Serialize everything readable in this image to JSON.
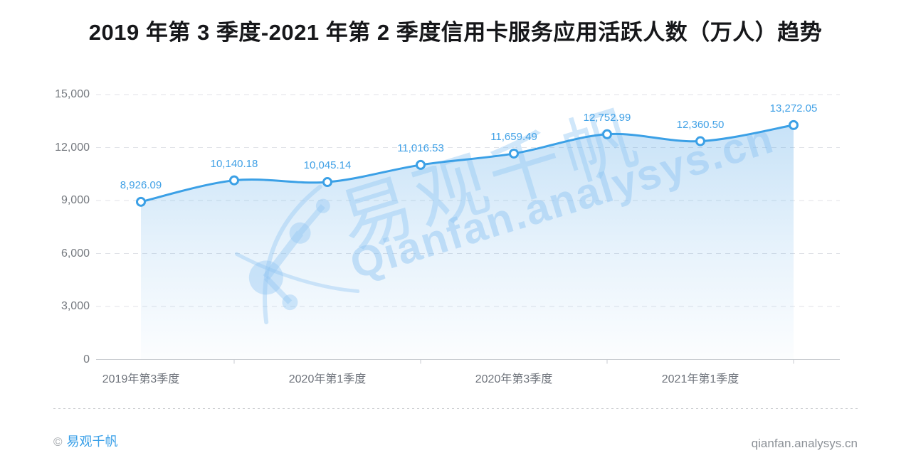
{
  "title": "2019 年第 3 季度-2021 年第 2 季度信用卡服务应用活跃人数（万人）趋势",
  "chart_data": {
    "type": "area",
    "title": "2019 年第 3 季度-2021 年第 2 季度信用卡服务应用活跃人数（万人）趋势",
    "values": [
      8926.09,
      10140.18,
      10045.14,
      11016.53,
      11659.49,
      12752.99,
      12360.5,
      13272.05
    ],
    "point_labels": [
      "8,926.09",
      "10,140.18",
      "10,045.14",
      "11,016.53",
      "11,659.49",
      "12,752.99",
      "12,360.50",
      "13,272.05"
    ],
    "x_tick_labels": [
      "2019年第3季度",
      "2020年第1季度",
      "2020年第3季度",
      "2021年第1季度"
    ],
    "x_label_point_indices": [
      0,
      2,
      4,
      6
    ],
    "y_ticks": [
      0,
      3000,
      6000,
      9000,
      12000,
      15000
    ],
    "y_tick_labels": [
      "0",
      "3,000",
      "6,000",
      "9,000",
      "12,000",
      "15,000"
    ],
    "ylim": [
      0,
      15000
    ],
    "grid": true,
    "grid_style": "horizontal-dashed",
    "legend": false,
    "line_color": "#3ba0e6",
    "marker_style": "hollow-circle",
    "label_color": "#41a1e6",
    "area_fill_top": "#cde5f9",
    "area_fill_bottom": "#ffffff"
  },
  "watermark": {
    "logo": "analysys-network-logo",
    "cn": "易观千帆",
    "en": "Qianfan.analysys.cn"
  },
  "footer": {
    "copyright_symbol": "©",
    "brand": "易观千帆",
    "site": "qianfan.analysys.cn"
  }
}
